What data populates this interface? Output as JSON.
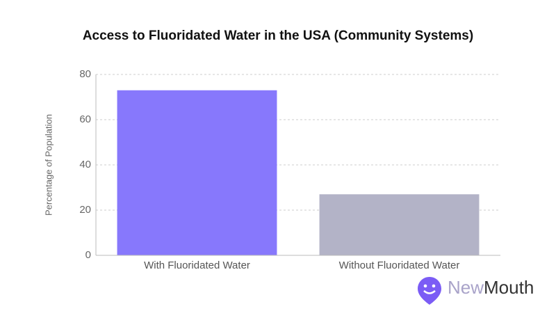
{
  "chart_data": {
    "type": "bar",
    "title": "Access to Fluoridated Water in the USA (Community Systems)",
    "y_label": "Percentage of Population",
    "categories": [
      "With Fluoridated Water",
      "Without Fluoridated Water"
    ],
    "values": [
      73,
      27
    ],
    "colors": [
      "#8778fc",
      "#b3b3c7"
    ],
    "ylim": [
      0,
      80
    ],
    "yticks": [
      0,
      20,
      40,
      60,
      80
    ],
    "grid": true
  },
  "brand": {
    "first": "New",
    "second": "Mouth"
  }
}
